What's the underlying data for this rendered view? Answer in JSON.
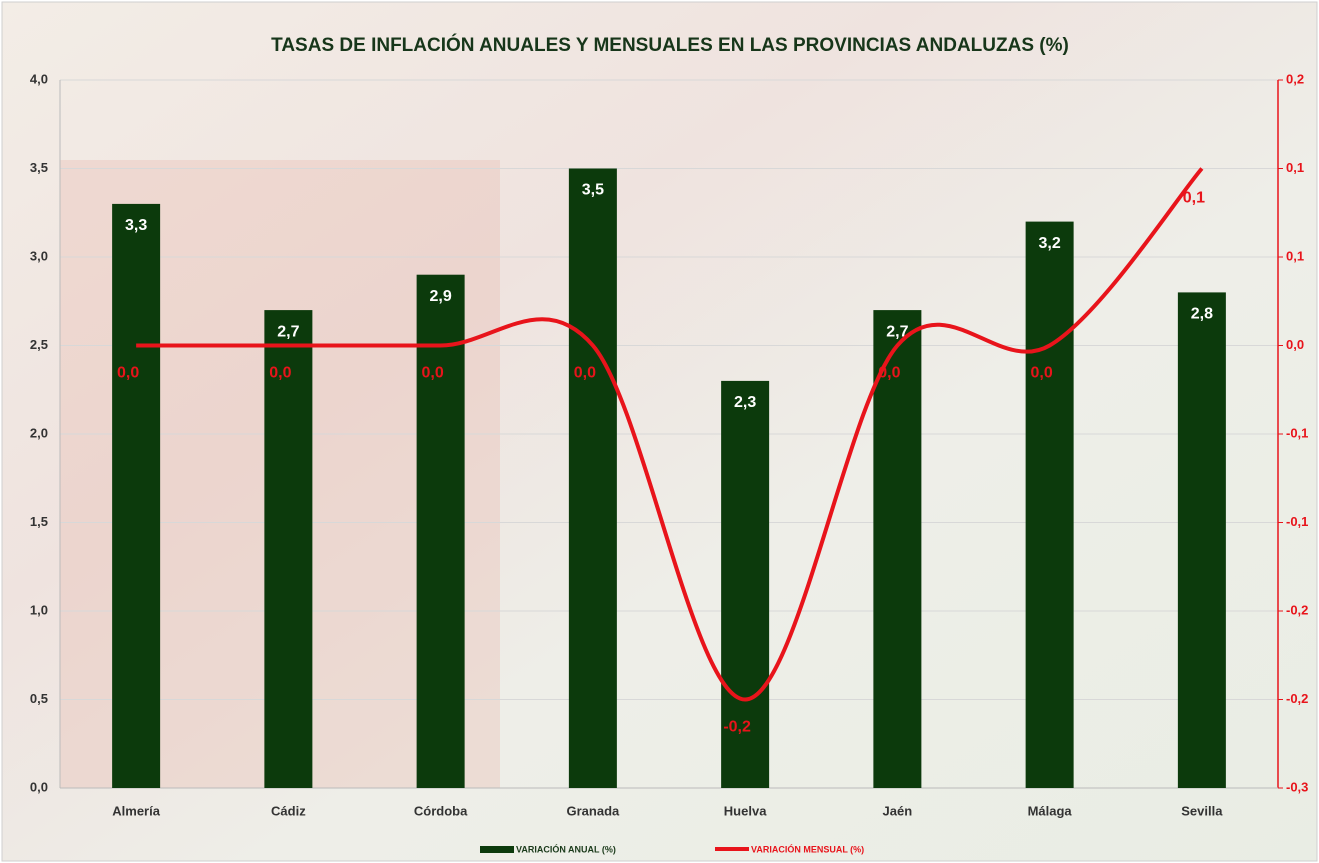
{
  "chart_data": {
    "type": "combo",
    "title": "TASAS DE INFLACIÓN ANUALES Y MENSUALES EN LAS PROVINCIAS ANDALUZAS (%)",
    "categories": [
      "Almería",
      "Cádiz",
      "Córdoba",
      "Granada",
      "Huelva",
      "Jaén",
      "Málaga",
      "Sevilla"
    ],
    "series": [
      {
        "name": "VARIACIÓN ANUAL (%)",
        "type": "bar",
        "color": "#0c3a0c",
        "values": [
          3.3,
          2.7,
          2.9,
          3.5,
          2.3,
          2.7,
          3.2,
          2.8
        ],
        "value_labels": [
          "3,3",
          "2,7",
          "2,9",
          "3,5",
          "2,3",
          "2,7",
          "3,2",
          "2,8"
        ]
      },
      {
        "name": "VARIACIÓN MENSUAL (%)",
        "type": "line",
        "axis": "y2",
        "color": "#e8141b",
        "values": [
          0.0,
          0.0,
          0.0,
          0.0,
          -0.2,
          0.0,
          0.0,
          0.1
        ],
        "value_labels": [
          "0,0",
          "0,0",
          "0,0",
          "0,0",
          "-0,2",
          "0,0",
          "0,0",
          "0,1"
        ]
      }
    ],
    "ylim": [
      0,
      4
    ],
    "yticks": [
      {
        "value": 0,
        "label": "0,0"
      },
      {
        "value": 0.5,
        "label": "0,5"
      },
      {
        "value": 1,
        "label": "1,0"
      },
      {
        "value": 1.5,
        "label": "1,5"
      },
      {
        "value": 2,
        "label": "2,0"
      },
      {
        "value": 2.5,
        "label": "2,5"
      },
      {
        "value": 3,
        "label": "3,0"
      },
      {
        "value": 3.5,
        "label": "3,5"
      },
      {
        "value": 4,
        "label": "4,0"
      }
    ],
    "y2lim": [
      -0.25,
      0.15
    ],
    "y2ticks": [
      {
        "value": -0.25,
        "label": "-0,3"
      },
      {
        "value": -0.2,
        "label": "-0,2"
      },
      {
        "value": -0.15,
        "label": "-0,2"
      },
      {
        "value": -0.1,
        "label": "-0,1"
      },
      {
        "value": -0.05,
        "label": "-0,1"
      },
      {
        "value": 0,
        "label": "0,0"
      },
      {
        "value": 0.05,
        "label": "0,1"
      },
      {
        "value": 0.1,
        "label": "0,1"
      },
      {
        "value": 0.15,
        "label": "0,2"
      }
    ],
    "grid": true,
    "legend": "bottom"
  }
}
